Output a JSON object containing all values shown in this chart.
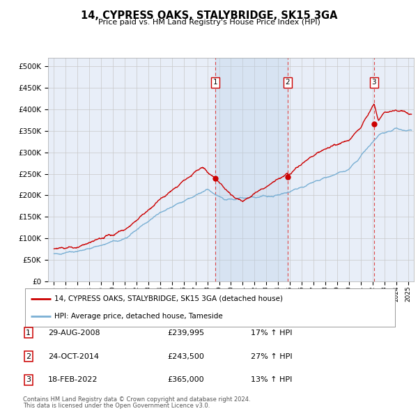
{
  "title": "14, CYPRESS OAKS, STALYBRIDGE, SK15 3GA",
  "subtitle": "Price paid vs. HM Land Registry's House Price Index (HPI)",
  "ytick_values": [
    0,
    50000,
    100000,
    150000,
    200000,
    250000,
    300000,
    350000,
    400000,
    450000,
    500000
  ],
  "ylim": [
    0,
    520000
  ],
  "xlim_start": 1994.5,
  "xlim_end": 2025.5,
  "legend_line1": "14, CYPRESS OAKS, STALYBRIDGE, SK15 3GA (detached house)",
  "legend_line2": "HPI: Average price, detached house, Tameside",
  "sale1_label": "1",
  "sale1_date": "29-AUG-2008",
  "sale1_price": "£239,995",
  "sale1_hpi": "17% ↑ HPI",
  "sale1_x": 2008.66,
  "sale1_y": 239995,
  "sale2_label": "2",
  "sale2_date": "24-OCT-2014",
  "sale2_price": "£243,500",
  "sale2_hpi": "27% ↑ HPI",
  "sale2_x": 2014.81,
  "sale2_y": 243500,
  "sale3_label": "3",
  "sale3_date": "18-FEB-2022",
  "sale3_price": "£365,000",
  "sale3_hpi": "13% ↑ HPI",
  "sale3_x": 2022.13,
  "sale3_y": 365000,
  "footer_line1": "Contains HM Land Registry data © Crown copyright and database right 2024.",
  "footer_line2": "This data is licensed under the Open Government Licence v3.0.",
  "red_color": "#cc0000",
  "blue_color": "#7ab0d4",
  "background_color": "#ffffff",
  "plot_bg_color": "#e8eef8",
  "grid_color": "#c8c8c8",
  "dashed_vline_color": "#dd4444",
  "box_color": "#cc0000",
  "shade_color": "#c5d8ec"
}
